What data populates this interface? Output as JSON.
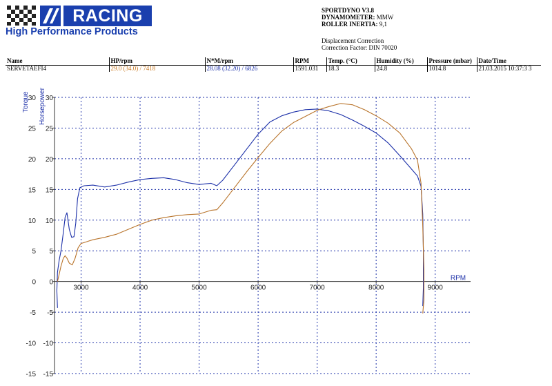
{
  "logo": {
    "brand": "RACING",
    "tagline": "High Performance Products"
  },
  "header": {
    "software_label": "SPORTDYNO V3.8",
    "dynamometer_label": "DYNAMOMETER:",
    "dynamometer_value": "MMW",
    "roller_label": "ROLLER INERTIA:",
    "roller_value": "9,1",
    "correction_title": "Displacement Correction",
    "correction_factor": "Correction Factor: DIN 70020"
  },
  "table": {
    "headers": [
      "Name",
      "HP/rpm",
      "N*M/rpm",
      "RPM",
      "Temp. (°C)",
      "Humidity (%)",
      "Pressure (mbar)",
      "Date/Time"
    ],
    "row": {
      "name": "SERVETAEFI4",
      "hp": "29.0 (34.0) / 7418",
      "nm": "28.08 (32.20) / 6826",
      "rpm": "1591.031",
      "temp": "18.3",
      "humidity": "24.8",
      "pressure": "1014.8",
      "datetime": "21.03.2015 10:37:3 3"
    }
  },
  "chart_data": {
    "type": "line",
    "xlabel": "RPM",
    "ylabel_primary": "Torque",
    "ylabel_secondary": "Horsepower",
    "x_ticks": [
      3000,
      4000,
      5000,
      6000,
      7000,
      8000,
      9000
    ],
    "y_ticks": [
      -15,
      -10,
      -5,
      0,
      5,
      10,
      15,
      20,
      25,
      30
    ],
    "xlim": [
      2550,
      9600
    ],
    "ylim": [
      -15,
      30
    ],
    "grid": true,
    "colors": {
      "torque": "#1b2fa8",
      "horsepower": "#b8732a",
      "grid": "#1b2fa8"
    },
    "series": [
      {
        "key": "torque",
        "points": [
          [
            2600,
            -4.3
          ],
          [
            2590,
            -1.5
          ],
          [
            2600,
            1.5
          ],
          [
            2630,
            3.5
          ],
          [
            2660,
            5.0
          ],
          [
            2700,
            8.0
          ],
          [
            2730,
            10.5
          ],
          [
            2760,
            11.2
          ],
          [
            2800,
            8.5
          ],
          [
            2840,
            7.2
          ],
          [
            2880,
            7.3
          ],
          [
            2910,
            9.5
          ],
          [
            2940,
            13.5
          ],
          [
            2980,
            15.3
          ],
          [
            3050,
            15.6
          ],
          [
            3200,
            15.7
          ],
          [
            3400,
            15.4
          ],
          [
            3600,
            15.7
          ],
          [
            3800,
            16.2
          ],
          [
            4000,
            16.6
          ],
          [
            4200,
            16.8
          ],
          [
            4400,
            16.9
          ],
          [
            4600,
            16.6
          ],
          [
            4800,
            16.1
          ],
          [
            5000,
            15.8
          ],
          [
            5200,
            16.0
          ],
          [
            5300,
            15.6
          ],
          [
            5400,
            16.5
          ],
          [
            5600,
            19.0
          ],
          [
            5800,
            21.5
          ],
          [
            6000,
            24.0
          ],
          [
            6200,
            26.0
          ],
          [
            6400,
            27.0
          ],
          [
            6600,
            27.6
          ],
          [
            6800,
            28.0
          ],
          [
            7000,
            28.1
          ],
          [
            7200,
            27.8
          ],
          [
            7400,
            27.2
          ],
          [
            7600,
            26.3
          ],
          [
            7800,
            25.3
          ],
          [
            8000,
            24.2
          ],
          [
            8200,
            22.6
          ],
          [
            8400,
            20.5
          ],
          [
            8600,
            18.3
          ],
          [
            8700,
            17.2
          ],
          [
            8760,
            15.5
          ],
          [
            8790,
            11.0
          ],
          [
            8800,
            5.0
          ],
          [
            8800,
            -1.0
          ],
          [
            8790,
            -4.0
          ]
        ]
      },
      {
        "key": "horsepower",
        "points": [
          [
            2600,
            0.0
          ],
          [
            2630,
            1.2
          ],
          [
            2660,
            2.5
          ],
          [
            2700,
            3.8
          ],
          [
            2730,
            4.2
          ],
          [
            2760,
            3.8
          ],
          [
            2800,
            3.0
          ],
          [
            2850,
            2.7
          ],
          [
            2900,
            3.8
          ],
          [
            2950,
            5.5
          ],
          [
            3000,
            6.2
          ],
          [
            3200,
            6.8
          ],
          [
            3400,
            7.2
          ],
          [
            3600,
            7.7
          ],
          [
            3800,
            8.5
          ],
          [
            4000,
            9.3
          ],
          [
            4200,
            10.0
          ],
          [
            4400,
            10.4
          ],
          [
            4600,
            10.7
          ],
          [
            4800,
            10.9
          ],
          [
            5000,
            11.0
          ],
          [
            5200,
            11.6
          ],
          [
            5300,
            11.7
          ],
          [
            5400,
            12.8
          ],
          [
            5600,
            15.3
          ],
          [
            5800,
            17.8
          ],
          [
            6000,
            20.2
          ],
          [
            6200,
            22.5
          ],
          [
            6400,
            24.5
          ],
          [
            6600,
            25.9
          ],
          [
            6800,
            26.9
          ],
          [
            7000,
            27.9
          ],
          [
            7200,
            28.5
          ],
          [
            7400,
            29.0
          ],
          [
            7600,
            28.8
          ],
          [
            7800,
            28.0
          ],
          [
            8000,
            27.0
          ],
          [
            8200,
            25.8
          ],
          [
            8400,
            24.2
          ],
          [
            8600,
            21.6
          ],
          [
            8700,
            19.8
          ],
          [
            8760,
            16.0
          ],
          [
            8790,
            9.0
          ],
          [
            8810,
            2.0
          ],
          [
            8810,
            -3.0
          ],
          [
            8790,
            -5.2
          ]
        ]
      }
    ]
  }
}
